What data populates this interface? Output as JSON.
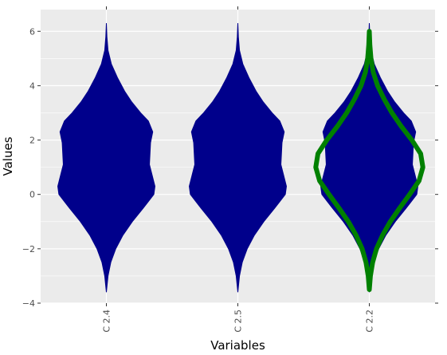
{
  "chart_data": {
    "type": "violin",
    "title": "",
    "xlabel": "Variables",
    "ylabel": "Values",
    "ylim": [
      -4,
      6.8
    ],
    "yticks": [
      -4,
      -2,
      0,
      2,
      4,
      6
    ],
    "categories": [
      "C 2.4",
      "C 2.5",
      "C 2.2"
    ],
    "grid": true,
    "panel_background": "#ebebeb",
    "grid_color": "#ffffff",
    "violins": [
      {
        "category": "C 2.4",
        "fill": "#00008b",
        "profile": [
          [
            -3.6,
            0.0
          ],
          [
            -3.0,
            0.03
          ],
          [
            -2.5,
            0.08
          ],
          [
            -2.0,
            0.17
          ],
          [
            -1.5,
            0.3
          ],
          [
            -1.0,
            0.47
          ],
          [
            -0.5,
            0.67
          ],
          [
            0.0,
            0.86
          ],
          [
            0.3,
            0.88
          ],
          [
            0.7,
            0.83
          ],
          [
            1.1,
            0.78
          ],
          [
            1.5,
            0.79
          ],
          [
            1.9,
            0.8
          ],
          [
            2.3,
            0.84
          ],
          [
            2.7,
            0.76
          ],
          [
            3.0,
            0.62
          ],
          [
            3.4,
            0.46
          ],
          [
            3.8,
            0.33
          ],
          [
            4.3,
            0.2
          ],
          [
            4.8,
            0.09
          ],
          [
            5.3,
            0.03
          ],
          [
            5.8,
            0.01
          ],
          [
            6.3,
            0.0
          ]
        ]
      },
      {
        "category": "C 2.5",
        "fill": "#00008b",
        "profile": [
          [
            -3.6,
            0.0
          ],
          [
            -3.0,
            0.03
          ],
          [
            -2.5,
            0.08
          ],
          [
            -2.0,
            0.17
          ],
          [
            -1.5,
            0.3
          ],
          [
            -1.0,
            0.47
          ],
          [
            -0.5,
            0.67
          ],
          [
            0.0,
            0.86
          ],
          [
            0.3,
            0.88
          ],
          [
            0.7,
            0.83
          ],
          [
            1.1,
            0.78
          ],
          [
            1.5,
            0.79
          ],
          [
            1.9,
            0.8
          ],
          [
            2.3,
            0.84
          ],
          [
            2.7,
            0.76
          ],
          [
            3.0,
            0.62
          ],
          [
            3.4,
            0.46
          ],
          [
            3.8,
            0.33
          ],
          [
            4.3,
            0.2
          ],
          [
            4.8,
            0.09
          ],
          [
            5.3,
            0.03
          ],
          [
            5.8,
            0.01
          ],
          [
            6.3,
            0.0
          ]
        ]
      },
      {
        "category": "C 2.2",
        "fill": "#00008b",
        "profile": [
          [
            -3.6,
            0.0
          ],
          [
            -3.0,
            0.03
          ],
          [
            -2.5,
            0.08
          ],
          [
            -2.0,
            0.17
          ],
          [
            -1.5,
            0.3
          ],
          [
            -1.0,
            0.47
          ],
          [
            -0.5,
            0.67
          ],
          [
            0.0,
            0.86
          ],
          [
            0.3,
            0.88
          ],
          [
            0.7,
            0.83
          ],
          [
            1.1,
            0.78
          ],
          [
            1.5,
            0.79
          ],
          [
            1.9,
            0.8
          ],
          [
            2.3,
            0.84
          ],
          [
            2.7,
            0.76
          ],
          [
            3.0,
            0.62
          ],
          [
            3.4,
            0.46
          ],
          [
            3.8,
            0.33
          ],
          [
            4.3,
            0.2
          ],
          [
            4.8,
            0.09
          ],
          [
            5.3,
            0.03
          ],
          [
            5.8,
            0.01
          ],
          [
            6.3,
            0.0
          ]
        ]
      },
      {
        "category": "C 2.2",
        "stroke": "#008000",
        "fill": "none",
        "profile": [
          [
            -3.5,
            0.0
          ],
          [
            -3.0,
            0.02
          ],
          [
            -2.5,
            0.06
          ],
          [
            -2.0,
            0.13
          ],
          [
            -1.5,
            0.24
          ],
          [
            -1.0,
            0.38
          ],
          [
            -0.5,
            0.55
          ],
          [
            0.0,
            0.73
          ],
          [
            0.5,
            0.9
          ],
          [
            1.0,
            0.97
          ],
          [
            1.5,
            0.93
          ],
          [
            2.0,
            0.77
          ],
          [
            2.5,
            0.58
          ],
          [
            3.0,
            0.41
          ],
          [
            3.5,
            0.27
          ],
          [
            4.0,
            0.15
          ],
          [
            4.5,
            0.07
          ],
          [
            5.0,
            0.03
          ],
          [
            5.5,
            0.01
          ],
          [
            6.0,
            0.0
          ]
        ]
      }
    ]
  }
}
